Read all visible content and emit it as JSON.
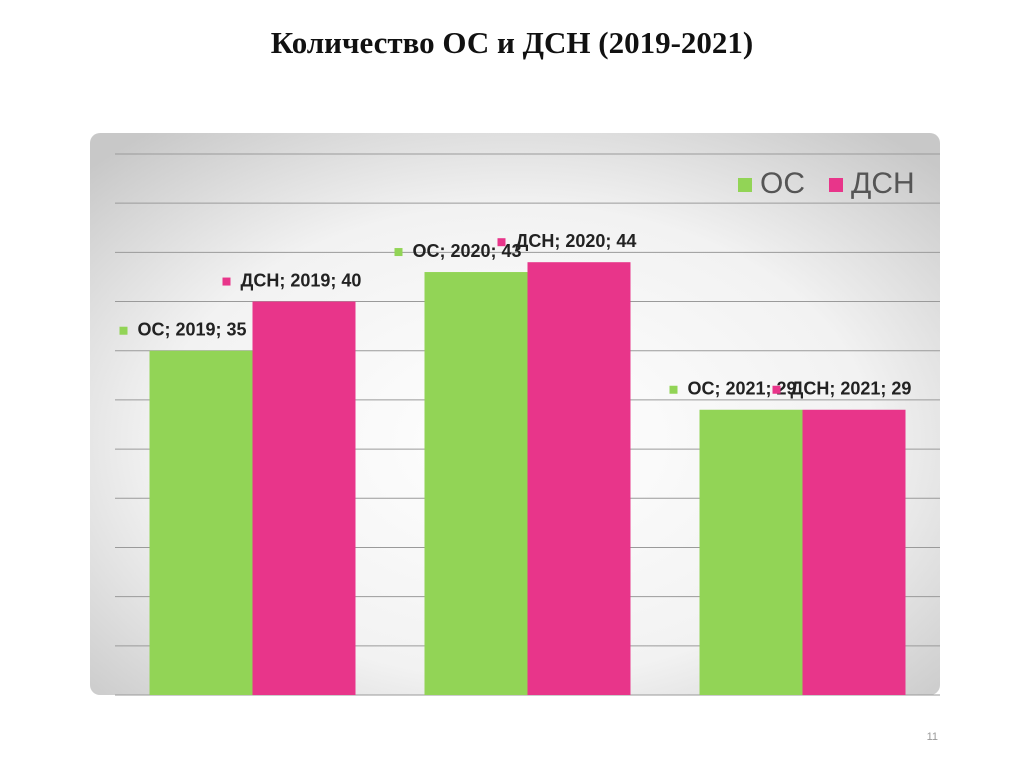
{
  "chart_data": {
    "type": "bar",
    "title": "Количество ОС и ДСН (2019-2021)",
    "categories": [
      "2019",
      "2020",
      "2021"
    ],
    "series": [
      {
        "name": "ОС",
        "color": "#92d456",
        "values": [
          35,
          43,
          29
        ],
        "value_labels": [
          "ОС; 2019; 35",
          "ОС; 2020; 43",
          "ОС; 2021; 29"
        ]
      },
      {
        "name": "ДСН",
        "color": "#e8358a",
        "values": [
          40,
          44,
          29
        ],
        "value_labels": [
          "ДСН; 2019; 40",
          "ДСН; 2020; 44",
          "ДСН; 2021; 29"
        ]
      }
    ],
    "ylim": [
      0,
      55
    ],
    "yticks": [
      0,
      5,
      10,
      15,
      20,
      25,
      30,
      35,
      40,
      45,
      50,
      55
    ],
    "grid": true,
    "legend": "top-right"
  },
  "slide_number": "11"
}
